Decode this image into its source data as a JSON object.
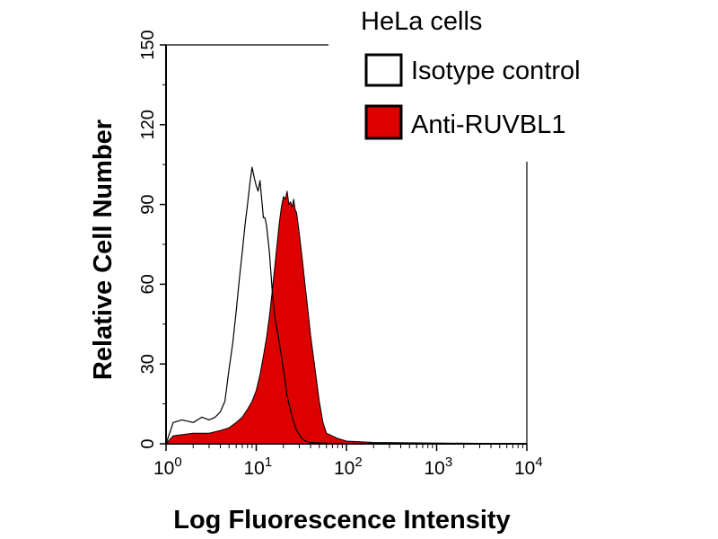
{
  "chart_data": {
    "type": "area",
    "title": "",
    "xlabel": "Log Fluorescence Intensity",
    "ylabel": "Relative Cell Number",
    "x_scale": "log",
    "xlim": [
      1,
      10000
    ],
    "ylim": [
      0,
      150
    ],
    "x_ticks": [
      {
        "base": "10",
        "exp": "0"
      },
      {
        "base": "10",
        "exp": "1"
      },
      {
        "base": "10",
        "exp": "2"
      },
      {
        "base": "10",
        "exp": "3"
      },
      {
        "base": "10",
        "exp": "4"
      }
    ],
    "y_ticks": [
      0,
      30,
      60,
      90,
      120,
      150
    ],
    "legend": {
      "title": "HeLa cells",
      "placement": "top-right",
      "entries": [
        "Isotype control",
        "Anti-RUVBL1"
      ]
    },
    "series": [
      {
        "name": "Isotype control",
        "style": "outline",
        "color": "#000000",
        "x": [
          1.0,
          1.2,
          1.5,
          2.0,
          2.5,
          3.0,
          3.5,
          4.0,
          4.5,
          5.0,
          5.5,
          6.0,
          6.5,
          7.0,
          7.5,
          8.0,
          8.5,
          9.0,
          9.5,
          10.0,
          10.5,
          11.0,
          11.5,
          12.0,
          12.5,
          13.0,
          14.0,
          15.0,
          16.0,
          18.0,
          20.0,
          22.0,
          25.0,
          28.0,
          32.0,
          35.0,
          40.0,
          50.0,
          60.0,
          100.0,
          10000.0
        ],
        "y": [
          0,
          8,
          9,
          8,
          10,
          9,
          10,
          12,
          16,
          28,
          38,
          50,
          62,
          72,
          82,
          90,
          98,
          104,
          100,
          97,
          95,
          99,
          92,
          85,
          85,
          82,
          72,
          58,
          48,
          38,
          28,
          18,
          10,
          5,
          2,
          1,
          0.5,
          0.3,
          0.2,
          0.1,
          0
        ]
      },
      {
        "name": "Anti-RUVBL1",
        "style": "filled",
        "color": "#dd0000",
        "x": [
          1.0,
          1.2,
          2.0,
          3.0,
          4.0,
          5.0,
          6.0,
          7.0,
          8.0,
          9.0,
          10.0,
          11.0,
          12.0,
          13.0,
          14.0,
          15.0,
          16.0,
          17.0,
          18.0,
          19.0,
          20.0,
          21.0,
          22.0,
          23.0,
          24.0,
          25.0,
          26.0,
          27.0,
          28.0,
          29.0,
          30.0,
          32.0,
          35.0,
          38.0,
          40.0,
          45.0,
          50.0,
          55.0,
          60.0,
          80.0,
          100.0,
          200.0,
          10000.0
        ],
        "y": [
          0,
          3,
          4,
          4,
          5,
          6,
          8,
          10,
          13,
          16,
          20,
          26,
          33,
          40,
          48,
          57,
          66,
          75,
          83,
          89,
          93,
          92,
          95,
          90,
          91,
          89,
          92,
          88,
          87,
          83,
          79,
          71,
          59,
          48,
          41,
          28,
          16,
          8,
          4,
          2,
          1,
          0.5,
          0
        ]
      }
    ]
  }
}
